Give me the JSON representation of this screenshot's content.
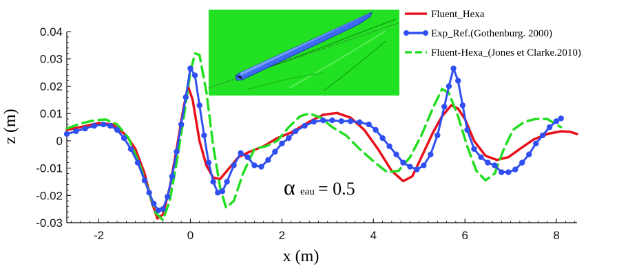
{
  "chart_data": {
    "type": "line",
    "xlabel": "x (m)",
    "ylabel": "z (m)",
    "xlim": [
      -2.7,
      8.45
    ],
    "ylim": [
      -0.03,
      0.04
    ],
    "xticks": [
      "-2",
      "0",
      "2",
      "4",
      "6",
      "8"
    ],
    "yticks": [
      "0.04",
      "0.03",
      "0.02",
      "0.01",
      "0",
      "-0.01",
      "-0.02",
      "-0.03"
    ],
    "legend_position": "top-right",
    "annotation": {
      "symbol": "α",
      "subscript": "eau",
      "rest": "= 0.5",
      "x": 2.1,
      "y": -0.019
    },
    "inset": {
      "description_icon": "ship-hull-wave-pattern-image",
      "background": "#22e022"
    },
    "colors": {
      "fluent_hexa": "#e8101a",
      "exp_ref": "#2f4ff0",
      "jones_clarke": "#22dd22"
    },
    "series": [
      {
        "name": "Fluent_Hexa",
        "style": "solid",
        "color": "#e8101a",
        "points": [
          [
            -2.7,
            0.004
          ],
          [
            -2.4,
            0.005
          ],
          [
            -2.0,
            0.0065
          ],
          [
            -1.7,
            0.006
          ],
          [
            -1.4,
            0.002
          ],
          [
            -1.2,
            -0.003
          ],
          [
            -1.0,
            -0.012
          ],
          [
            -0.85,
            -0.022
          ],
          [
            -0.72,
            -0.0285
          ],
          [
            -0.6,
            -0.027
          ],
          [
            -0.45,
            -0.017
          ],
          [
            -0.3,
            -0.003
          ],
          [
            -0.15,
            0.012
          ],
          [
            -0.05,
            0.02
          ],
          [
            0.05,
            0.015
          ],
          [
            0.2,
            0.0
          ],
          [
            0.35,
            -0.009
          ],
          [
            0.5,
            -0.0135
          ],
          [
            0.65,
            -0.014
          ],
          [
            0.85,
            -0.01
          ],
          [
            1.05,
            -0.006
          ],
          [
            1.3,
            -0.004
          ],
          [
            1.6,
            -0.002
          ],
          [
            1.9,
            0.001
          ],
          [
            2.2,
            0.003
          ],
          [
            2.6,
            0.007
          ],
          [
            2.9,
            0.0095
          ],
          [
            3.2,
            0.0102
          ],
          [
            3.5,
            0.0085
          ],
          [
            3.8,
            0.004
          ],
          [
            4.1,
            -0.003
          ],
          [
            4.4,
            -0.011
          ],
          [
            4.65,
            -0.0148
          ],
          [
            4.85,
            -0.013
          ],
          [
            5.05,
            -0.006
          ],
          [
            5.3,
            0.003
          ],
          [
            5.5,
            0.009
          ],
          [
            5.7,
            0.013
          ],
          [
            5.85,
            0.0118
          ],
          [
            6.0,
            0.008
          ],
          [
            6.2,
            0.0
          ],
          [
            6.45,
            -0.0055
          ],
          [
            6.7,
            -0.007
          ],
          [
            6.95,
            -0.006
          ],
          [
            7.2,
            -0.003
          ],
          [
            7.5,
            0.0005
          ],
          [
            7.8,
            0.0025
          ],
          [
            8.1,
            0.0035
          ],
          [
            8.3,
            0.0033
          ],
          [
            8.45,
            0.0025
          ]
        ]
      },
      {
        "name": "Exp_Ref.(Gothenburg. 2000)",
        "style": "solid-markers",
        "color": "#2f4ff0",
        "points": [
          [
            -2.7,
            0.0025
          ],
          [
            -2.5,
            0.0035
          ],
          [
            -2.3,
            0.0045
          ],
          [
            -2.1,
            0.0055
          ],
          [
            -1.9,
            0.006
          ],
          [
            -1.75,
            0.0055
          ],
          [
            -1.6,
            0.004
          ],
          [
            -1.45,
            0.001
          ],
          [
            -1.3,
            -0.003
          ],
          [
            -1.15,
            -0.008
          ],
          [
            -1.0,
            -0.0145
          ],
          [
            -0.9,
            -0.019
          ],
          [
            -0.8,
            -0.023
          ],
          [
            -0.7,
            -0.0255
          ],
          [
            -0.6,
            -0.025
          ],
          [
            -0.5,
            -0.0205
          ],
          [
            -0.4,
            -0.013
          ],
          [
            -0.3,
            -0.004
          ],
          [
            -0.2,
            0.006
          ],
          [
            -0.1,
            0.016
          ],
          [
            0.0,
            0.0265
          ],
          [
            0.1,
            0.024
          ],
          [
            0.2,
            0.013
          ],
          [
            0.3,
            0.002
          ],
          [
            0.4,
            -0.008
          ],
          [
            0.5,
            -0.015
          ],
          [
            0.6,
            -0.019
          ],
          [
            0.7,
            -0.0185
          ],
          [
            0.8,
            -0.015
          ],
          [
            0.95,
            -0.009
          ],
          [
            1.1,
            -0.0045
          ],
          [
            1.25,
            -0.006
          ],
          [
            1.4,
            -0.009
          ],
          [
            1.55,
            -0.0095
          ],
          [
            1.7,
            -0.007
          ],
          [
            1.85,
            -0.004
          ],
          [
            2.0,
            -0.001
          ],
          [
            2.15,
            0.001
          ],
          [
            2.3,
            0.0035
          ],
          [
            2.5,
            0.0055
          ],
          [
            2.7,
            0.007
          ],
          [
            2.9,
            0.0075
          ],
          [
            3.1,
            0.0075
          ],
          [
            3.3,
            0.0072
          ],
          [
            3.5,
            0.0072
          ],
          [
            3.7,
            0.0068
          ],
          [
            3.9,
            0.006
          ],
          [
            4.05,
            0.004
          ],
          [
            4.2,
            0.001
          ],
          [
            4.35,
            -0.002
          ],
          [
            4.5,
            -0.005
          ],
          [
            4.65,
            -0.008
          ],
          [
            4.8,
            -0.0095
          ],
          [
            4.95,
            -0.0105
          ],
          [
            5.1,
            -0.009
          ],
          [
            5.25,
            -0.005
          ],
          [
            5.4,
            0.002
          ],
          [
            5.55,
            0.0125
          ],
          [
            5.65,
            0.02
          ],
          [
            5.75,
            0.0265
          ],
          [
            5.85,
            0.022
          ],
          [
            5.95,
            0.013
          ],
          [
            6.05,
            0.004
          ],
          [
            6.2,
            -0.003
          ],
          [
            6.35,
            -0.006
          ],
          [
            6.5,
            -0.008
          ],
          [
            6.65,
            -0.009
          ],
          [
            6.8,
            -0.0115
          ],
          [
            6.95,
            -0.0115
          ],
          [
            7.1,
            -0.0105
          ],
          [
            7.25,
            -0.008
          ],
          [
            7.4,
            -0.005
          ],
          [
            7.55,
            -0.001
          ],
          [
            7.7,
            0.002
          ],
          [
            7.85,
            0.005
          ],
          [
            8.0,
            0.0072
          ],
          [
            8.1,
            0.0082
          ]
        ]
      },
      {
        "name": "Fluent-Hexa_(Jones et Clarke.2010)",
        "style": "dashed",
        "color": "#22dd22",
        "points": [
          [
            -2.7,
            0.0045
          ],
          [
            -2.4,
            0.0063
          ],
          [
            -2.1,
            0.0075
          ],
          [
            -1.85,
            0.0078
          ],
          [
            -1.6,
            0.006
          ],
          [
            -1.35,
            0.001
          ],
          [
            -1.1,
            -0.009
          ],
          [
            -0.9,
            -0.019
          ],
          [
            -0.75,
            -0.0265
          ],
          [
            -0.6,
            -0.029
          ],
          [
            -0.45,
            -0.022
          ],
          [
            -0.3,
            -0.008
          ],
          [
            -0.15,
            0.008
          ],
          [
            0.0,
            0.025
          ],
          [
            0.1,
            0.032
          ],
          [
            0.2,
            0.0315
          ],
          [
            0.35,
            0.018
          ],
          [
            0.5,
            -0.002
          ],
          [
            0.65,
            -0.017
          ],
          [
            0.78,
            -0.0245
          ],
          [
            0.95,
            -0.022
          ],
          [
            1.15,
            -0.012
          ],
          [
            1.4,
            -0.003
          ],
          [
            1.65,
            -0.002
          ],
          [
            1.9,
            0.0
          ],
          [
            2.15,
            0.005
          ],
          [
            2.4,
            0.009
          ],
          [
            2.6,
            0.01
          ],
          [
            2.85,
            0.0085
          ],
          [
            3.1,
            0.005
          ],
          [
            3.4,
            0.002
          ],
          [
            3.7,
            -0.003
          ],
          [
            4.0,
            -0.0075
          ],
          [
            4.3,
            -0.0115
          ],
          [
            4.55,
            -0.011
          ],
          [
            4.8,
            -0.006
          ],
          [
            5.05,
            0.002
          ],
          [
            5.3,
            0.012
          ],
          [
            5.5,
            0.019
          ],
          [
            5.65,
            0.0175
          ],
          [
            5.85,
            0.009
          ],
          [
            6.05,
            -0.002
          ],
          [
            6.25,
            -0.011
          ],
          [
            6.45,
            -0.0145
          ],
          [
            6.65,
            -0.012
          ],
          [
            6.85,
            -0.003
          ],
          [
            7.05,
            0.004
          ],
          [
            7.3,
            0.007
          ],
          [
            7.55,
            0.008
          ],
          [
            7.8,
            0.008
          ],
          [
            8.1,
            0.005
          ]
        ]
      }
    ]
  }
}
